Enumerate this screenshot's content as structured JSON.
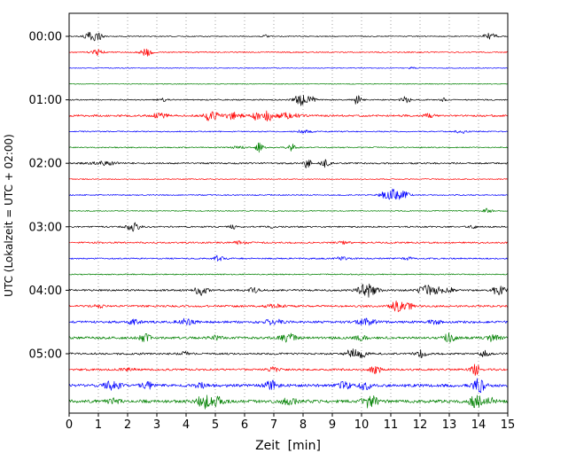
{
  "chart_data": {
    "type": "line",
    "variant": "seismogram-helicorder",
    "title": "",
    "xlabel": "Zeit  [min]",
    "ylabel": "UTC (Lokalzeit = UTC + 02:00)",
    "xlim": [
      0,
      15
    ],
    "xticks": [
      0,
      1,
      2,
      3,
      4,
      5,
      6,
      7,
      8,
      9,
      10,
      11,
      12,
      13,
      14,
      15
    ],
    "grid": "vertical-dotted",
    "legend": "none",
    "minutes_per_row": 15,
    "row_labels": [
      "00:00",
      "01:00",
      "02:00",
      "03:00",
      "04:00",
      "05:00"
    ],
    "color_cycle": [
      "black",
      "red",
      "blue",
      "green"
    ],
    "colors": {
      "black": "#000000",
      "red": "#ff0000",
      "blue": "#0000ff",
      "green": "#008000"
    },
    "traces": [
      {
        "time": "00:00",
        "color": "black",
        "noise": 0.06,
        "bursts": [
          [
            0.75,
            0.25,
            0.55
          ],
          [
            1.05,
            0.15,
            0.3
          ],
          [
            6.7,
            0.1,
            0.18
          ],
          [
            14.4,
            0.2,
            0.5
          ]
        ]
      },
      {
        "time": "00:15",
        "color": "red",
        "noise": 0.07,
        "bursts": [
          [
            0.95,
            0.2,
            0.35
          ],
          [
            2.65,
            0.2,
            0.45
          ]
        ]
      },
      {
        "time": "00:30",
        "color": "blue",
        "noise": 0.05,
        "bursts": [
          [
            11.7,
            0.1,
            0.12
          ]
        ]
      },
      {
        "time": "00:45",
        "color": "green",
        "noise": 0.05,
        "bursts": []
      },
      {
        "time": "01:00",
        "color": "black",
        "noise": 0.07,
        "bursts": [
          [
            3.2,
            0.15,
            0.2
          ],
          [
            7.9,
            0.2,
            0.7
          ],
          [
            8.25,
            0.15,
            0.5
          ],
          [
            9.85,
            0.15,
            0.55
          ],
          [
            11.5,
            0.15,
            0.5
          ],
          [
            12.8,
            0.1,
            0.2
          ]
        ]
      },
      {
        "time": "01:15",
        "color": "red",
        "noise": 0.12,
        "bursts": [
          [
            3.1,
            0.3,
            0.25
          ],
          [
            4.85,
            0.2,
            0.8
          ],
          [
            5.6,
            0.3,
            0.4
          ],
          [
            6.4,
            0.15,
            0.6
          ],
          [
            6.8,
            0.15,
            0.7
          ],
          [
            7.5,
            0.4,
            0.3
          ],
          [
            12.3,
            0.2,
            0.2
          ]
        ]
      },
      {
        "time": "01:30",
        "color": "blue",
        "noise": 0.07,
        "bursts": [
          [
            8.0,
            0.3,
            0.15
          ],
          [
            13.4,
            0.2,
            0.2
          ]
        ]
      },
      {
        "time": "01:45",
        "color": "green",
        "noise": 0.07,
        "bursts": [
          [
            5.8,
            0.2,
            0.2
          ],
          [
            6.5,
            0.15,
            0.55
          ],
          [
            7.6,
            0.15,
            0.45
          ]
        ]
      },
      {
        "time": "02:00",
        "color": "black",
        "noise": 0.1,
        "bursts": [
          [
            1.2,
            0.5,
            0.2
          ],
          [
            8.15,
            0.12,
            0.6
          ],
          [
            8.75,
            0.15,
            0.55
          ]
        ]
      },
      {
        "time": "02:15",
        "color": "red",
        "noise": 0.06,
        "bursts": []
      },
      {
        "time": "02:30",
        "color": "blue",
        "noise": 0.07,
        "bursts": [
          [
            11.0,
            0.3,
            0.8
          ],
          [
            11.45,
            0.2,
            0.4
          ]
        ]
      },
      {
        "time": "02:45",
        "color": "green",
        "noise": 0.06,
        "bursts": [
          [
            14.3,
            0.15,
            0.3
          ]
        ]
      },
      {
        "time": "03:00",
        "color": "black",
        "noise": 0.09,
        "bursts": [
          [
            2.2,
            0.2,
            0.55
          ],
          [
            5.6,
            0.12,
            0.25
          ],
          [
            6.9,
            0.1,
            0.15
          ],
          [
            13.8,
            0.12,
            0.25
          ]
        ]
      },
      {
        "time": "03:15",
        "color": "red",
        "noise": 0.1,
        "bursts": [
          [
            5.8,
            0.3,
            0.15
          ],
          [
            9.4,
            0.2,
            0.15
          ]
        ]
      },
      {
        "time": "03:30",
        "color": "blue",
        "noise": 0.09,
        "bursts": [
          [
            5.1,
            0.15,
            0.35
          ],
          [
            9.3,
            0.2,
            0.2
          ],
          [
            11.6,
            0.15,
            0.15
          ]
        ]
      },
      {
        "time": "03:45",
        "color": "green",
        "noise": 0.07,
        "bursts": []
      },
      {
        "time": "04:00",
        "color": "black",
        "noise": 0.12,
        "bursts": [
          [
            4.5,
            0.2,
            0.6
          ],
          [
            6.3,
            0.2,
            0.3
          ],
          [
            10.2,
            0.3,
            0.8
          ],
          [
            12.2,
            0.25,
            0.6
          ],
          [
            12.65,
            0.2,
            0.4
          ],
          [
            13.0,
            0.15,
            0.35
          ],
          [
            14.7,
            0.2,
            0.7
          ]
        ]
      },
      {
        "time": "04:15",
        "color": "red",
        "noise": 0.12,
        "bursts": [
          [
            1.0,
            0.2,
            0.2
          ],
          [
            7.0,
            0.3,
            0.2
          ],
          [
            11.2,
            0.2,
            0.75
          ],
          [
            11.6,
            0.15,
            0.45
          ]
        ]
      },
      {
        "time": "04:30",
        "color": "blue",
        "noise": 0.15,
        "bursts": [
          [
            2.2,
            0.2,
            0.25
          ],
          [
            4.0,
            0.3,
            0.35
          ],
          [
            7.0,
            0.3,
            0.35
          ],
          [
            10.2,
            0.3,
            0.4
          ],
          [
            12.5,
            0.2,
            0.25
          ]
        ]
      },
      {
        "time": "04:45",
        "color": "green",
        "noise": 0.15,
        "bursts": [
          [
            2.6,
            0.2,
            0.4
          ],
          [
            5.0,
            0.2,
            0.25
          ],
          [
            7.5,
            0.25,
            0.55
          ],
          [
            10.0,
            0.2,
            0.3
          ],
          [
            13.0,
            0.2,
            0.5
          ],
          [
            14.5,
            0.2,
            0.45
          ]
        ]
      },
      {
        "time": "05:00",
        "color": "black",
        "noise": 0.12,
        "bursts": [
          [
            4.0,
            0.2,
            0.2
          ],
          [
            9.7,
            0.2,
            0.7
          ],
          [
            10.05,
            0.15,
            0.4
          ],
          [
            12.0,
            0.2,
            0.4
          ],
          [
            14.2,
            0.15,
            0.35
          ]
        ]
      },
      {
        "time": "05:15",
        "color": "red",
        "noise": 0.12,
        "bursts": [
          [
            2.0,
            0.3,
            0.15
          ],
          [
            7.0,
            0.2,
            0.25
          ],
          [
            10.5,
            0.2,
            0.5
          ],
          [
            13.9,
            0.15,
            0.8
          ]
        ]
      },
      {
        "time": "05:30",
        "color": "blue",
        "noise": 0.18,
        "bursts": [
          [
            1.5,
            0.25,
            0.6
          ],
          [
            2.7,
            0.2,
            0.4
          ],
          [
            4.5,
            0.2,
            0.25
          ],
          [
            6.9,
            0.2,
            0.6
          ],
          [
            9.4,
            0.2,
            0.5
          ],
          [
            10.1,
            0.2,
            0.55
          ],
          [
            14.0,
            0.2,
            0.85
          ]
        ]
      },
      {
        "time": "05:45",
        "color": "green",
        "noise": 0.2,
        "bursts": [
          [
            1.5,
            0.2,
            0.3
          ],
          [
            4.6,
            0.25,
            0.8
          ],
          [
            5.1,
            0.2,
            0.5
          ],
          [
            7.5,
            0.3,
            0.3
          ],
          [
            10.3,
            0.25,
            0.75
          ],
          [
            13.9,
            0.2,
            0.8
          ],
          [
            14.4,
            0.15,
            0.5
          ]
        ]
      }
    ]
  }
}
